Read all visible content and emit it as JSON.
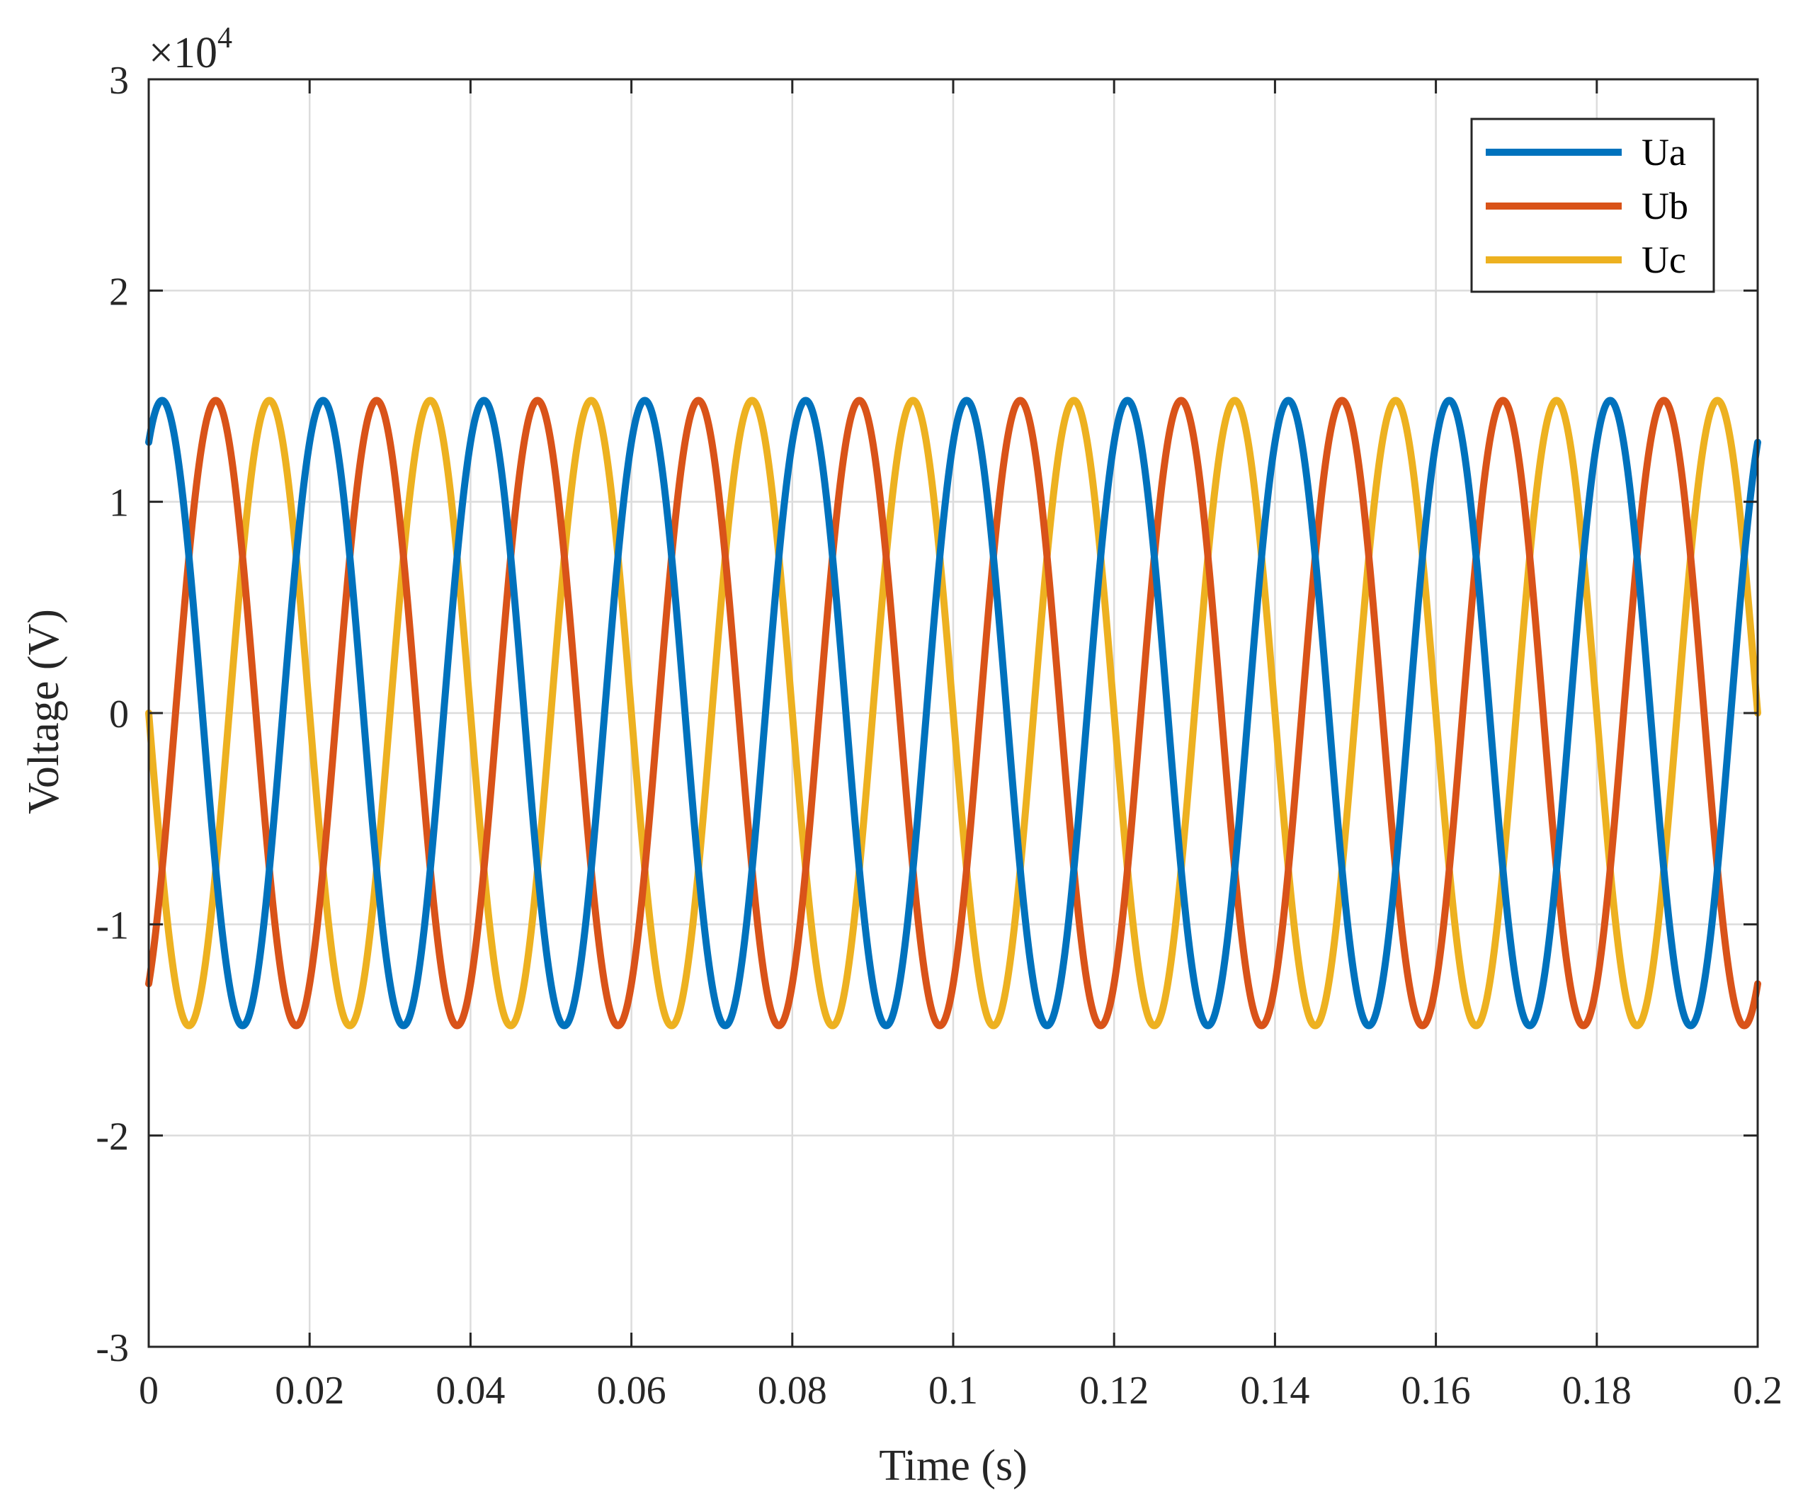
{
  "chart_data": {
    "type": "line",
    "xlabel": "Time (s)",
    "ylabel": "Voltage (V)",
    "y_exponent_label": "×10",
    "y_exponent_power": "4",
    "xlim": [
      0,
      0.2
    ],
    "ylim": [
      -3,
      3
    ],
    "y_scale_factor": 10000,
    "x_ticks": [
      0,
      0.02,
      0.04,
      0.06,
      0.08,
      0.1,
      0.12,
      0.14,
      0.16,
      0.18,
      0.2
    ],
    "x_tick_labels": [
      "0",
      "0.02",
      "0.04",
      "0.06",
      "0.08",
      "0.1",
      "0.12",
      "0.14",
      "0.16",
      "0.18",
      "0.2"
    ],
    "y_ticks": [
      -3,
      -2,
      -1,
      0,
      1,
      2,
      3
    ],
    "y_tick_labels": [
      "-3",
      "-2",
      "-1",
      "0",
      "1",
      "2",
      "3"
    ],
    "grid": true,
    "legend_position": "top-right",
    "series": [
      {
        "name": "Ua",
        "color": "#0072BD",
        "amplitude": 14800,
        "frequency_hz": 50,
        "phase_deg": 60
      },
      {
        "name": "Ub",
        "color": "#D95319",
        "amplitude": 14800,
        "frequency_hz": 50,
        "phase_deg": -60
      },
      {
        "name": "Uc",
        "color": "#EDB120",
        "amplitude": 14800,
        "frequency_hz": 50,
        "phase_deg": 180
      }
    ]
  }
}
